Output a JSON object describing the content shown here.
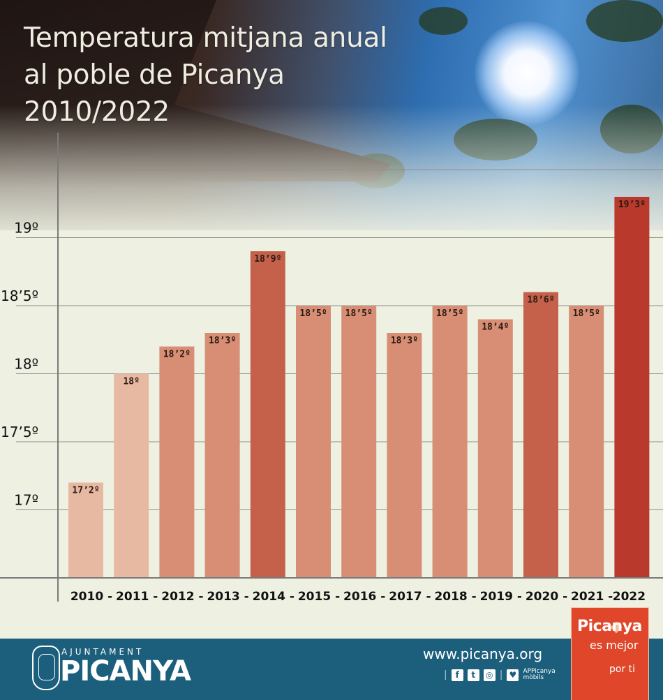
{
  "title": {
    "line1": "Temperatura mitjana anual",
    "line2": "al poble de Picanya",
    "line3": "2010/2022"
  },
  "chart_data": {
    "type": "bar",
    "title": "Temperatura mitjana anual al poble de Picanya 2010/2022",
    "categories": [
      "2010",
      "2011",
      "2012",
      "2013",
      "2014",
      "2015",
      "2016",
      "2017",
      "2018",
      "2019",
      "2020",
      "2021",
      "2022"
    ],
    "values": [
      17.2,
      18.0,
      18.2,
      18.3,
      18.9,
      18.5,
      18.5,
      18.3,
      18.5,
      18.4,
      18.6,
      18.5,
      19.3
    ],
    "value_labels": [
      "17’2º",
      "18º",
      "18’2º",
      "18’3º",
      "18’9º",
      "18’5º",
      "18’5º",
      "18’3º",
      "18’5º",
      "18’4º",
      "18’6º",
      "18’5º",
      "19’3º"
    ],
    "x_tick_labels": [
      "2010 -",
      "2011 -",
      "2012 -",
      "2013 -",
      "2014 -",
      "2015 -",
      "2016 -",
      "2017 -",
      "2018 -",
      "2019 -",
      "2020 -",
      "2021 -",
      "2022"
    ],
    "y_ticks": [
      17,
      17.5,
      18,
      18.5,
      19
    ],
    "y_tick_labels": [
      "17º",
      "17’5º",
      "18º",
      "18’5º",
      "19º"
    ],
    "ylim": [
      16.5,
      19.5
    ],
    "grid": true,
    "bar_colors": [
      "#e8b9a2",
      "#e8b9a2",
      "#d88e74",
      "#d88e74",
      "#c5614a",
      "#d88e74",
      "#d88e74",
      "#d88e74",
      "#d88e74",
      "#d88e74",
      "#c5614a",
      "#d88e74",
      "#b93a2c"
    ]
  },
  "footer": {
    "ajuntament": "AJUNTAMENT",
    "logo_name": "PICANYA",
    "website": "www.picanya.org",
    "app_line1": "APPicanya",
    "app_line2": "mòbils",
    "icons": [
      "facebook-icon",
      "twitter-icon",
      "instagram-icon",
      "app-icon"
    ],
    "color": "#1c5f7d"
  },
  "badge": {
    "line1": "Picanya",
    "line2": "es mejor",
    "line3": "por ti",
    "color": "#e0462a"
  }
}
